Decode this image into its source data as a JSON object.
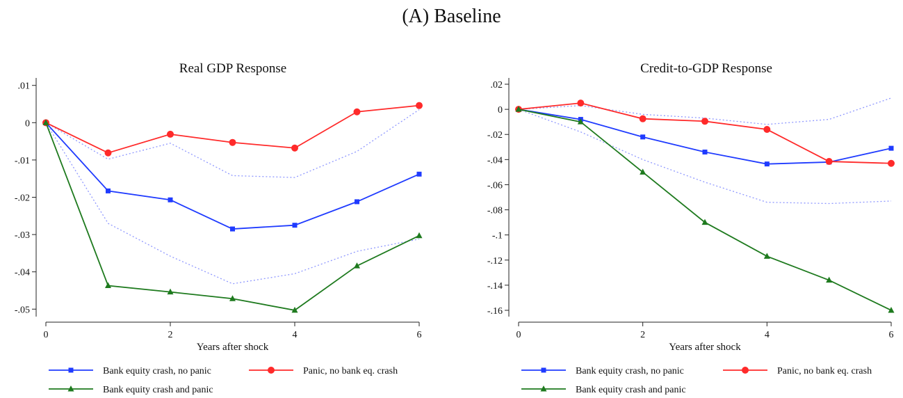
{
  "figure": {
    "title": "(A) Baseline"
  },
  "colors": {
    "blue": "#1f3bff",
    "red": "#ff2a2a",
    "green": "#1e7a1e",
    "ci": "#8f98ff"
  },
  "chart_data": [
    {
      "type": "line",
      "title": "Real GDP Response",
      "xlabel": "Years after shock",
      "ylabel": "",
      "x": [
        0,
        1,
        2,
        3,
        4,
        5,
        6
      ],
      "xticks": [
        0,
        2,
        4,
        6
      ],
      "xtick_labels": [
        "0",
        "2",
        "4",
        "6"
      ],
      "ylim": [
        -0.052,
        0.012
      ],
      "yticks": [
        0.01,
        0,
        -0.01,
        -0.02,
        -0.03,
        -0.04,
        -0.05
      ],
      "ytick_labels": [
        ".01",
        "0",
        "-.01",
        "-.02",
        "-.03",
        "-.04",
        "-.05"
      ],
      "series": [
        {
          "name": "Bank equity crash, no panic",
          "color": "#1f3bff",
          "marker": "square",
          "values": [
            0,
            -0.0183,
            -0.0207,
            -0.0285,
            -0.0275,
            -0.0212,
            -0.0138
          ]
        },
        {
          "name": "Panic, no bank eq. crash",
          "color": "#ff2a2a",
          "marker": "circle",
          "values": [
            0,
            -0.0081,
            -0.0031,
            -0.0053,
            -0.0068,
            0.0029,
            0.0046
          ]
        },
        {
          "name": "Bank equity crash and panic",
          "color": "#1e7a1e",
          "marker": "triangle",
          "values": [
            0,
            -0.0437,
            -0.0454,
            -0.0472,
            -0.0503,
            -0.0384,
            -0.0303
          ]
        }
      ],
      "ci_bands": [
        {
          "values": [
            0,
            -0.0098,
            -0.0055,
            -0.0142,
            -0.0147,
            -0.0077,
            0.0035
          ]
        },
        {
          "values": [
            0,
            -0.027,
            -0.0358,
            -0.0432,
            -0.0405,
            -0.0345,
            -0.0312
          ]
        }
      ],
      "legend": {
        "placement": "bottom",
        "columns": 2
      }
    },
    {
      "type": "line",
      "title": "Credit-to-GDP Response",
      "xlabel": "Years after shock",
      "ylabel": "",
      "x": [
        0,
        1,
        2,
        3,
        4,
        5,
        6
      ],
      "xticks": [
        0,
        2,
        4,
        6
      ],
      "xtick_labels": [
        "0",
        "2",
        "4",
        "6"
      ],
      "ylim": [
        -0.165,
        0.025
      ],
      "yticks": [
        0.02,
        0,
        -0.02,
        -0.04,
        -0.06,
        -0.08,
        -0.1,
        -0.12,
        -0.14,
        -0.16
      ],
      "ytick_labels": [
        ".02",
        "0",
        "-.02",
        "-.04",
        "-.06",
        "-.08",
        "-.1",
        "-.12",
        "-.14",
        "-.16"
      ],
      "series": [
        {
          "name": "Bank equity crash, no panic",
          "color": "#1f3bff",
          "marker": "square",
          "values": [
            0,
            -0.008,
            -0.022,
            -0.034,
            -0.0435,
            -0.042,
            -0.031
          ]
        },
        {
          "name": "Panic, no bank eq. crash",
          "color": "#ff2a2a",
          "marker": "circle",
          "values": [
            0,
            0.005,
            -0.0075,
            -0.0095,
            -0.016,
            -0.0415,
            -0.043
          ]
        },
        {
          "name": "Bank equity crash and panic",
          "color": "#1e7a1e",
          "marker": "triangle",
          "values": [
            0,
            -0.01,
            -0.05,
            -0.09,
            -0.117,
            -0.136,
            -0.16
          ]
        }
      ],
      "ci_bands": [
        {
          "values": [
            0,
            0.003,
            -0.004,
            -0.007,
            -0.012,
            -0.008,
            0.009
          ]
        },
        {
          "values": [
            0,
            -0.018,
            -0.04,
            -0.058,
            -0.074,
            -0.075,
            -0.073
          ]
        }
      ],
      "legend": {
        "placement": "bottom",
        "columns": 2
      }
    }
  ]
}
